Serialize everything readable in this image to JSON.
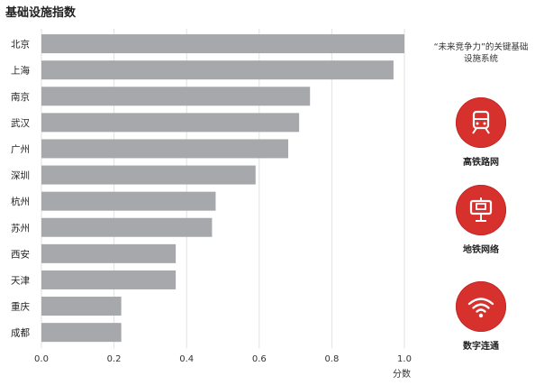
{
  "title": "基础设施指数",
  "side_note": "“未来竞争力”的关键基础设施系统",
  "badges": [
    {
      "label": "高铁路网",
      "icon": "high-speed-train-icon"
    },
    {
      "label": "地铁网络",
      "icon": "metro-icon"
    },
    {
      "label": "数字连通",
      "icon": "wifi-icon"
    }
  ],
  "colors": {
    "bar": "#a6a8ab",
    "accent": "#d6312d",
    "grid": "#e2e2e2"
  },
  "chart_data": {
    "type": "bar",
    "orientation": "horizontal",
    "categories": [
      "北京",
      "上海",
      "南京",
      "武汉",
      "广州",
      "深圳",
      "杭州",
      "苏州",
      "西安",
      "天津",
      "重庆",
      "成都"
    ],
    "values": [
      1.0,
      0.97,
      0.74,
      0.71,
      0.68,
      0.59,
      0.48,
      0.47,
      0.37,
      0.37,
      0.22,
      0.22
    ],
    "xlabel": "分数",
    "xlim": [
      0,
      1.0
    ],
    "xticks": [
      "0.0",
      "0.2",
      "0.4",
      "0.6",
      "0.8",
      "1.0"
    ],
    "grid": true
  }
}
